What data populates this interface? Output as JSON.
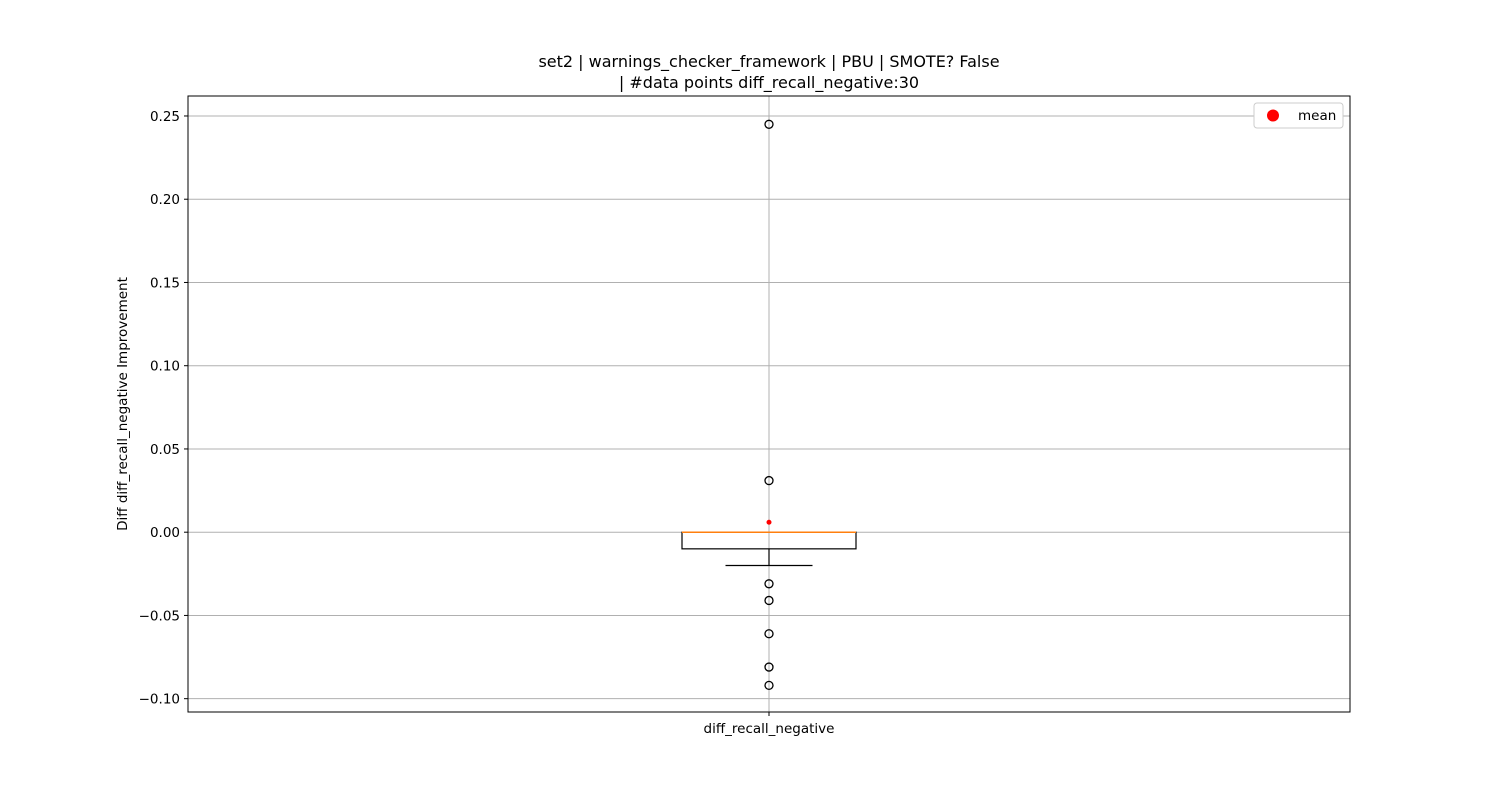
{
  "chart_data": {
    "type": "box",
    "title_lines": [
      "set2 | warnings_checker_framework | PBU | SMOTE? False",
      "| #data points diff_recall_negative:30"
    ],
    "xlabel": "",
    "ylabel": "Diff diff_recall_negative Improvement",
    "categories": [
      "diff_recall_negative"
    ],
    "ylim": [
      -0.108,
      0.262
    ],
    "y_ticks": [
      {
        "value": 0.25,
        "label": "0.25"
      },
      {
        "value": 0.2,
        "label": "0.20"
      },
      {
        "value": 0.15,
        "label": "0.15"
      },
      {
        "value": 0.1,
        "label": "0.10"
      },
      {
        "value": 0.05,
        "label": "0.05"
      },
      {
        "value": 0.0,
        "label": "0.00"
      },
      {
        "value": -0.05,
        "label": "−0.05"
      },
      {
        "value": -0.1,
        "label": "−0.10"
      }
    ],
    "grid": true,
    "box": {
      "q1": -0.01,
      "median": 0.0,
      "q3": 0.0,
      "whisker_low": -0.02,
      "whisker_high": 0.0,
      "mean": 0.006,
      "outliers": [
        0.245,
        0.031,
        -0.031,
        -0.041,
        -0.061,
        -0.081,
        -0.092
      ]
    },
    "legend": {
      "position": "top-right",
      "entries": [
        {
          "label": "mean",
          "color": "#ff0000",
          "marker": "circle"
        }
      ]
    },
    "colors": {
      "box": "#000000",
      "median": "#ff7f0e",
      "mean": "#ff0000",
      "grid": "#b0b0b0"
    }
  }
}
